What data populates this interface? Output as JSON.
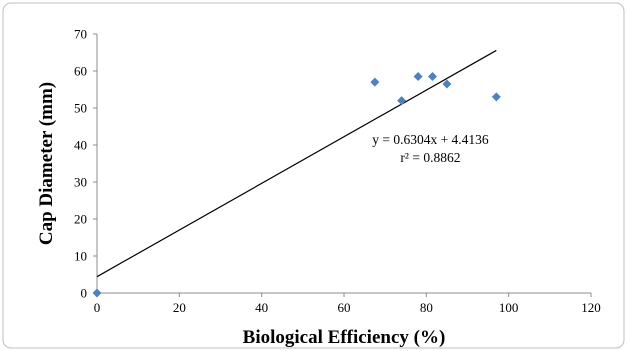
{
  "chart_data": {
    "type": "scatter",
    "xlabel": "Biological Efficiency (%)",
    "ylabel": "Cap Diameter (mm)",
    "xlim": [
      0,
      120
    ],
    "ylim": [
      0,
      70
    ],
    "x_ticks": [
      "0",
      "20",
      "40",
      "60",
      "80",
      "100",
      "120"
    ],
    "y_ticks": [
      "0",
      "10",
      "20",
      "30",
      "40",
      "50",
      "60",
      "70"
    ],
    "grid": false,
    "marker_color": "#4F81BD",
    "points": [
      {
        "x": 0,
        "y": 0
      },
      {
        "x": 67.5,
        "y": 57
      },
      {
        "x": 74,
        "y": 52
      },
      {
        "x": 78,
        "y": 58.5
      },
      {
        "x": 81.5,
        "y": 58.5
      },
      {
        "x": 85,
        "y": 56.5
      },
      {
        "x": 97,
        "y": 53
      }
    ],
    "trendline": {
      "slope": 0.6304,
      "intercept": 4.4136,
      "x_range": [
        0,
        97
      ],
      "equation_label": "y = 0.6304x + 4.4136",
      "r2_label": "r² = 0.8862"
    }
  }
}
